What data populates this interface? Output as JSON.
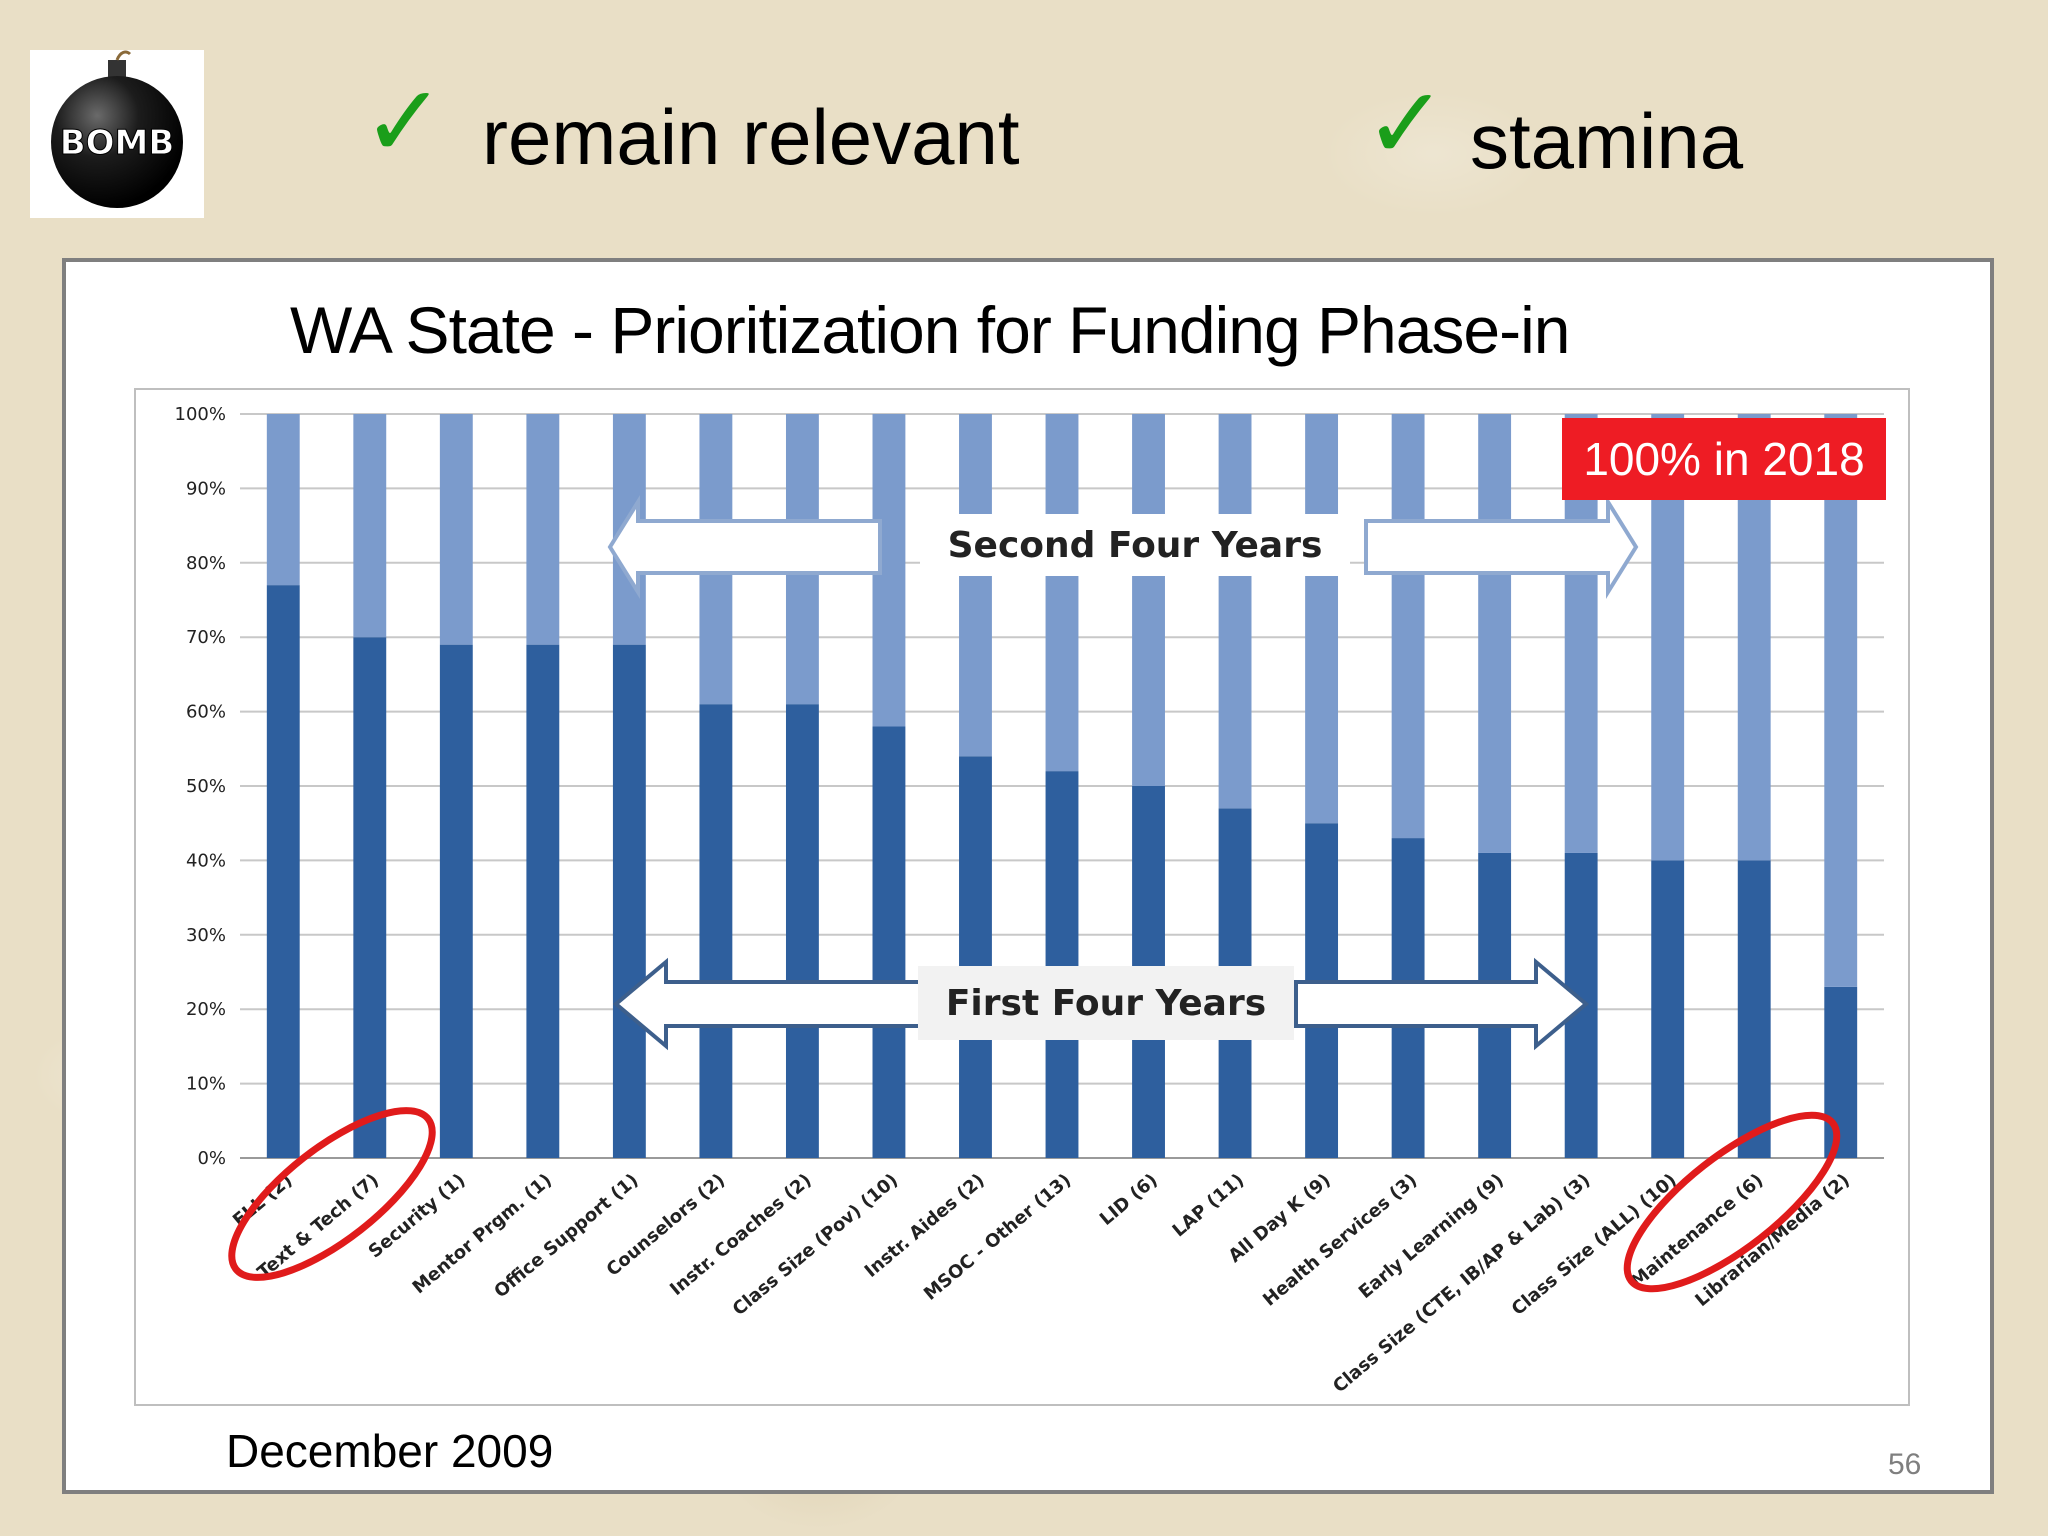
{
  "header": {
    "logo_text": "BOMB",
    "item1": "remain relevant",
    "item2": "stamina",
    "check_glyph": "✓",
    "check_color": "#1a9e1a"
  },
  "slide": {
    "title": "WA State - Prioritization for Funding Phase-in",
    "date": "December 2009",
    "page_number": "56"
  },
  "annotations": {
    "badge": "100% in 2018",
    "badge_color": "#ee1c24",
    "second_arrow_label": "Second Four Years",
    "first_arrow_label": "First Four Years",
    "circled_first": "Text & Tech (7)",
    "circled_last": "Librarian/Media (2)"
  },
  "chart_data": {
    "type": "bar",
    "stacked": true,
    "title": "WA State - Prioritization for Funding Phase-in",
    "xlabel": "",
    "ylabel": "",
    "ylim": [
      0,
      100
    ],
    "yticks": [
      "0%",
      "10%",
      "20%",
      "30%",
      "40%",
      "50%",
      "60%",
      "70%",
      "80%",
      "90%",
      "100%"
    ],
    "grid": true,
    "categories": [
      "ELL (2)",
      "Text & Tech (7)",
      "Security (1)",
      "Mentor Prgm. (1)",
      "Office Support (1)",
      "Counselors (2)",
      "Instr. Coaches (2)",
      "Class Size (Pov) (10)",
      "Instr. Aides (2)",
      "MSOC - Other (13)",
      "LID (6)",
      "LAP (11)",
      "All Day K (9)",
      "Health Services (3)",
      "Early Learning (9)",
      "Class Size (CTE, IB/AP & Lab) (3)",
      "Class Size (ALL) (10)",
      "Maintenance (6)",
      "Librarian/Media (2)"
    ],
    "series": [
      {
        "name": "First Four Years",
        "color": "#2e5f9e",
        "values": [
          77,
          70,
          69,
          69,
          69,
          61,
          61,
          58,
          54,
          52,
          50,
          47,
          45,
          43,
          41,
          41,
          40,
          40,
          23
        ]
      },
      {
        "name": "Second Four Years",
        "color": "#7b9bcc",
        "values": [
          23,
          30,
          31,
          31,
          31,
          39,
          39,
          42,
          46,
          48,
          50,
          53,
          55,
          57,
          59,
          59,
          60,
          60,
          77
        ]
      }
    ]
  }
}
